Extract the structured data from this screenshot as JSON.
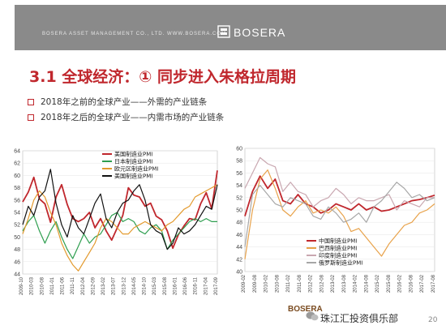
{
  "header": {
    "company_line": "BOSERA ASSET MANAGEMENT CO., LTD.          WWW.BOSERA.COM",
    "logo_text": "BOSERA"
  },
  "title": "3.1  全球经济：①  同步进入朱格拉周期",
  "bullets": [
    "2018年之前的全球产业——外需的产业链条",
    "2018年之后的全球产业——内需市场的产业链条"
  ],
  "footer": {
    "small_logo": "BOSERA",
    "watermark": "珠江汇投资俱乐部",
    "page": "20"
  },
  "colors": {
    "accent": "#c0272d",
    "header": "#8a8a8a"
  },
  "chart_data": [
    {
      "type": "line",
      "ylim": [
        44,
        64
      ],
      "yticks": [
        44,
        46,
        48,
        50,
        52,
        54,
        56,
        58,
        60,
        62,
        64
      ],
      "x_labels": [
        "2009-10",
        "2010-03",
        "2010-08",
        "2011-01",
        "2011-06",
        "2011-11",
        "2012-04",
        "2012-09",
        "2013-02",
        "2013-07",
        "2013-12",
        "2014-05",
        "2014-10",
        "2015-03",
        "2015-08",
        "2016-01",
        "2016-06",
        "2016-11",
        "2017-04",
        "2017-09"
      ],
      "legend": "top-left",
      "series": [
        {
          "name": "美国制造业PMI",
          "color": "#c0272d",
          "values": [
            55.7,
            57.3,
            59.7,
            56.2,
            55.4,
            52.4,
            56.5,
            58.5,
            55.3,
            53.0,
            52.5,
            53.0,
            54.0,
            51.5,
            53.0,
            51.0,
            49.5,
            51.5,
            53.5,
            58.0,
            56.8,
            56.5,
            55.0,
            55.5,
            53.4,
            52.8,
            51.0,
            48.2,
            50.4,
            51.8,
            53.0,
            52.8,
            55.4,
            57.2,
            54.6,
            60.8
          ]
        },
        {
          "name": "日本制造业PMI",
          "color": "#2e9e4f",
          "values": [
            51.0,
            52.5,
            53.5,
            51.0,
            49.0,
            51.0,
            52.5,
            50.0,
            48.0,
            46.5,
            48.5,
            50.5,
            49.0,
            50.0,
            50.5,
            52.0,
            53.5,
            54.0,
            52.5,
            53.0,
            52.5,
            51.0,
            50.5,
            51.5,
            52.0,
            51.0,
            48.0,
            49.5,
            50.5,
            51.5,
            52.5,
            53.0,
            52.5,
            53.0,
            52.5,
            52.5
          ]
        },
        {
          "name": "欧元区制造业PMI",
          "color": "#e39a2e",
          "values": [
            50.5,
            53.0,
            56.0,
            57.5,
            56.5,
            54.0,
            52.0,
            49.0,
            47.0,
            45.5,
            44.5,
            46.0,
            47.5,
            49.0,
            51.5,
            53.0,
            52.5,
            51.5,
            50.5,
            50.5,
            51.5,
            52.0,
            52.5,
            52.0,
            51.5,
            51.0,
            52.0,
            52.5,
            53.5,
            54.5,
            55.0,
            56.5,
            57.0,
            57.5,
            58.0,
            58.5
          ]
        },
        {
          "name": "美国制造业PMI",
          "color": "#111111",
          "values": [
            52.0,
            55.0,
            53.5,
            56.5,
            57.5,
            61.0,
            55.5,
            52.0,
            50.0,
            53.5,
            51.5,
            50.5,
            53.0,
            55.5,
            57.0,
            53.0,
            51.5,
            54.0,
            55.5,
            56.0,
            57.5,
            58.5,
            56.0,
            52.0,
            51.0,
            50.5,
            48.0,
            49.0,
            51.5,
            50.5,
            51.0,
            52.0,
            53.5,
            55.0,
            54.5,
            58.5
          ]
        }
      ]
    },
    {
      "type": "line",
      "ylim": [
        40,
        60
      ],
      "yticks": [
        40,
        42,
        44,
        46,
        48,
        50,
        52,
        54,
        56,
        58,
        60
      ],
      "x_labels": [
        "2009-02",
        "2009-08",
        "2010-02",
        "2010-08",
        "2011-02",
        "2011-08",
        "2012-02",
        "2012-08",
        "2013-02",
        "2013-08",
        "2014-02",
        "2014-08",
        "2015-02",
        "2015-08",
        "2016-02",
        "2016-08",
        "2017-02",
        "2017-08"
      ],
      "legend": "bottom-left",
      "series": [
        {
          "name": "中国制造业PMI",
          "color": "#c0272d",
          "values": [
            49.0,
            53.0,
            55.5,
            53.5,
            55.0,
            51.5,
            51.0,
            52.5,
            51.0,
            50.5,
            49.5,
            50.0,
            51.0,
            50.5,
            50.0,
            51.0,
            50.0,
            50.5,
            49.8,
            50.0,
            50.5,
            51.0,
            51.5,
            51.7,
            52.0,
            52.4
          ]
        },
        {
          "name": "巴西制造业PMI",
          "color": "#e8a24a",
          "values": [
            42.0,
            50.0,
            55.0,
            56.5,
            53.5,
            50.0,
            49.0,
            50.5,
            51.5,
            49.5,
            50.0,
            49.5,
            50.5,
            49.0,
            46.5,
            47.0,
            45.5,
            44.0,
            42.5,
            44.5,
            46.0,
            47.5,
            48.0,
            49.5,
            50.0,
            51.0
          ]
        },
        {
          "name": "印度制造业PMI",
          "color": "#c9a7b0",
          "values": [
            53.5,
            56.0,
            58.5,
            57.5,
            57.0,
            53.0,
            54.5,
            53.0,
            52.5,
            50.5,
            51.5,
            52.0,
            53.5,
            52.5,
            51.0,
            52.0,
            51.5,
            51.5,
            52.0,
            52.5,
            50.0,
            51.5,
            51.0,
            50.5,
            52.0,
            52.0
          ]
        },
        {
          "name": "俄罗斯制造业PMI",
          "color": "#a7a7a7",
          "values": [
            44.0,
            52.5,
            54.0,
            52.5,
            51.0,
            50.5,
            52.0,
            51.5,
            51.0,
            49.0,
            48.5,
            50.5,
            49.5,
            48.0,
            48.5,
            49.5,
            48.0,
            50.5,
            51.5,
            53.0,
            54.5,
            53.5,
            52.0,
            52.5,
            51.5,
            52.0
          ]
        }
      ]
    }
  ]
}
